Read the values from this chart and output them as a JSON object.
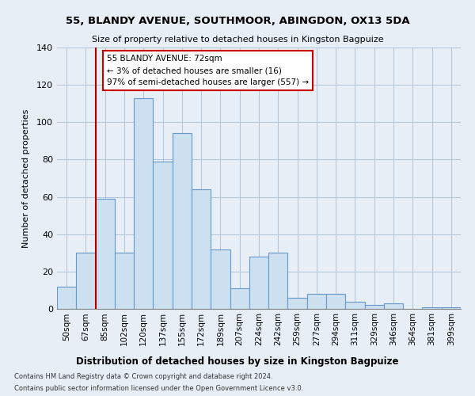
{
  "title": "55, BLANDY AVENUE, SOUTHMOOR, ABINGDON, OX13 5DA",
  "subtitle": "Size of property relative to detached houses in Kingston Bagpuize",
  "xlabel": "Distribution of detached houses by size in Kingston Bagpuize",
  "ylabel": "Number of detached properties",
  "footnote1": "Contains HM Land Registry data © Crown copyright and database right 2024.",
  "footnote2": "Contains public sector information licensed under the Open Government Licence v3.0.",
  "bin_labels": [
    "50sqm",
    "67sqm",
    "85sqm",
    "102sqm",
    "120sqm",
    "137sqm",
    "155sqm",
    "172sqm",
    "189sqm",
    "207sqm",
    "224sqm",
    "242sqm",
    "259sqm",
    "277sqm",
    "294sqm",
    "311sqm",
    "329sqm",
    "346sqm",
    "364sqm",
    "381sqm",
    "399sqm"
  ],
  "bar_heights": [
    12,
    30,
    59,
    30,
    113,
    79,
    94,
    64,
    32,
    11,
    28,
    30,
    6,
    8,
    8,
    4,
    2,
    3,
    0,
    1,
    1
  ],
  "bar_color": "#cce0f0",
  "bar_edge_color": "#6699cc",
  "vline_color": "#aa0000",
  "ylim": [
    0,
    140
  ],
  "yticks": [
    0,
    20,
    40,
    60,
    80,
    100,
    120,
    140
  ],
  "annotation_title": "55 BLANDY AVENUE: 72sqm",
  "annotation_line1": "← 3% of detached houses are smaller (16)",
  "annotation_line2": "97% of semi-detached houses are larger (557) →",
  "annotation_box_color": "#ffffff",
  "annotation_box_edge": "#cc0000",
  "background_color": "#e8eef5",
  "plot_bg_color": "#e8eef5",
  "grid_color": "#b0c4d8"
}
